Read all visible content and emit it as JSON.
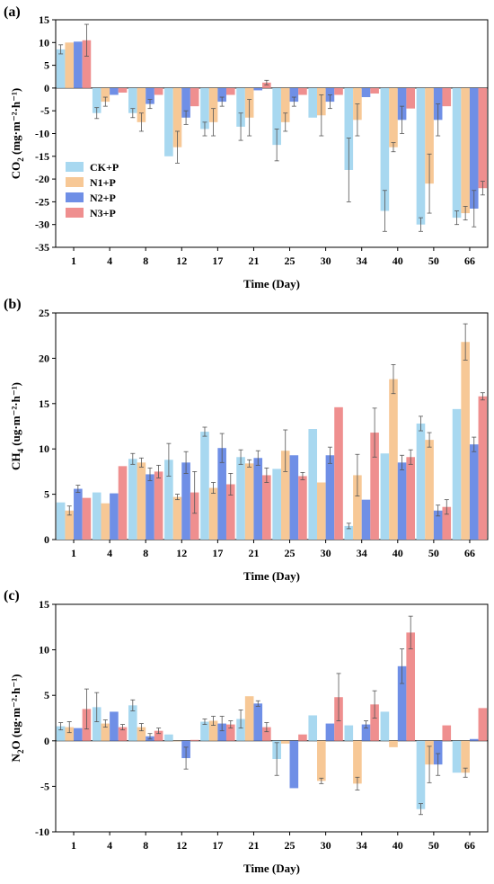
{
  "colors": {
    "CK+P": "#a8d8f0",
    "N1+P": "#f7c896",
    "N2+P": "#6f8fe6",
    "N3+P": "#ef8f8f"
  },
  "legend": [
    "CK+P",
    "N1+P",
    "N2+P",
    "N3+P"
  ],
  "chart_data": [
    {
      "type": "bar",
      "panel_label": "(a)",
      "title": "",
      "ylabel_main": "CO",
      "ylabel_sub": "2",
      "ylabel_unit": "(mg·m⁻²·h⁻¹)",
      "xlabel": "Time (Day)",
      "ylim": [
        -35,
        15
      ],
      "yticks": [
        -35,
        -30,
        -25,
        -20,
        -15,
        -10,
        -5,
        0,
        5,
        10,
        15
      ],
      "categories": [
        "1",
        "4",
        "8",
        "12",
        "17",
        "21",
        "25",
        "30",
        "34",
        "40",
        "50",
        "66"
      ],
      "legend_position": "left-middle",
      "series": [
        {
          "name": "CK+P",
          "values": [
            8.5,
            -5.5,
            -5.5,
            -15,
            -9,
            -8.5,
            -12.5,
            -6.5,
            -18,
            -27,
            -30,
            -28.5
          ],
          "errors": [
            1,
            1.2,
            1,
            0,
            1.5,
            3,
            3.5,
            0,
            7,
            4.5,
            1.5,
            1.5
          ]
        },
        {
          "name": "N1+P",
          "values": [
            10,
            -3,
            -7.5,
            -13,
            -7.5,
            -6.5,
            -7.5,
            -6,
            -7,
            -13,
            -21,
            -27.5
          ],
          "errors": [
            0,
            1,
            2,
            3.5,
            3,
            4,
            2,
            4.5,
            3.5,
            1,
            6.5,
            1.5
          ]
        },
        {
          "name": "N2+P",
          "values": [
            10.2,
            -1.5,
            -3.5,
            -6.5,
            -3,
            -0.5,
            -3,
            -3,
            -2,
            -7,
            -7,
            -26.5
          ],
          "errors": [
            0,
            0,
            1,
            1.5,
            1,
            0,
            1,
            1.5,
            0,
            3,
            3.5,
            4
          ]
        },
        {
          "name": "N3+P",
          "values": [
            10.5,
            -1,
            -1.5,
            -4,
            -1.5,
            1.2,
            -1.5,
            -1.5,
            -1.2,
            -4.5,
            -4,
            -22
          ],
          "errors": [
            3.5,
            0,
            0,
            0,
            0,
            0.5,
            0,
            0,
            0,
            0,
            0,
            1.5
          ]
        }
      ]
    },
    {
      "type": "bar",
      "panel_label": "(b)",
      "title": "",
      "ylabel_main": "CH",
      "ylabel_sub": "4",
      "ylabel_unit": "(ug·m⁻²·h⁻¹)",
      "xlabel": "Time (Day)",
      "ylim": [
        0,
        25
      ],
      "yticks": [
        0,
        5,
        10,
        15,
        20,
        25
      ],
      "categories": [
        "1",
        "4",
        "8",
        "12",
        "17",
        "21",
        "25",
        "30",
        "34",
        "40",
        "50",
        "66"
      ],
      "series": [
        {
          "name": "CK+P",
          "values": [
            4.1,
            5.2,
            8.9,
            8.8,
            11.9,
            9.1,
            7.8,
            12.2,
            1.5,
            9.5,
            12.8,
            14.4
          ],
          "errors": [
            0,
            0,
            0.6,
            1.8,
            0.5,
            0.8,
            0,
            0,
            0.3,
            0,
            0.8,
            0
          ]
        },
        {
          "name": "N1+P",
          "values": [
            3.2,
            4.0,
            8.5,
            4.7,
            5.7,
            8.4,
            9.8,
            6.3,
            7.1,
            17.7,
            11.0,
            21.8
          ],
          "errors": [
            0.5,
            0,
            0.5,
            0.3,
            0.6,
            0.4,
            2.3,
            0,
            2.3,
            1.6,
            0.8,
            2.0
          ]
        },
        {
          "name": "N2+P",
          "values": [
            5.6,
            5.1,
            7.2,
            8.5,
            10.1,
            9.0,
            9.3,
            9.3,
            4.4,
            8.5,
            3.2,
            10.5
          ],
          "errors": [
            0.4,
            0,
            0.7,
            1.2,
            1.6,
            0.8,
            0,
            0.9,
            0,
            0.8,
            0.6,
            0.8
          ]
        },
        {
          "name": "N3+P",
          "values": [
            4.6,
            8.1,
            7.5,
            5.2,
            6.1,
            7.1,
            7.0,
            14.6,
            11.8,
            9.1,
            3.6,
            15.8
          ],
          "errors": [
            0,
            0,
            0.7,
            2.3,
            1.2,
            0.8,
            0.4,
            0,
            2.7,
            0.8,
            0.8,
            0.4
          ]
        }
      ]
    },
    {
      "type": "bar",
      "panel_label": "(c)",
      "title": "",
      "ylabel_main": "N",
      "ylabel_sub": "2",
      "ylabel_after_sub": "O",
      "ylabel_unit": "(ug·m⁻²·h⁻¹)",
      "xlabel": "Time (Day)",
      "ylim": [
        -10,
        15
      ],
      "yticks": [
        -10,
        -5,
        0,
        5,
        10,
        15
      ],
      "categories": [
        "1",
        "4",
        "8",
        "12",
        "17",
        "21",
        "25",
        "30",
        "34",
        "40",
        "50",
        "66"
      ],
      "series": [
        {
          "name": "CK+P",
          "values": [
            1.6,
            3.7,
            3.9,
            0.7,
            2.1,
            2.4,
            -2.0,
            2.8,
            1.7,
            3.2,
            -7.5,
            -3.5
          ],
          "errors": [
            0.4,
            1.6,
            0.6,
            0,
            0.3,
            1.0,
            1.8,
            0,
            0,
            0,
            0.6,
            0
          ]
        },
        {
          "name": "N1+P",
          "values": [
            1.5,
            1.9,
            1.5,
            0,
            2.2,
            4.9,
            -0.3,
            -4.4,
            -4.7,
            -0.7,
            -2.6,
            -3.5
          ],
          "errors": [
            0.6,
            0.4,
            0.4,
            0,
            0.5,
            0,
            0,
            0.3,
            0.7,
            0,
            2.0,
            0.5
          ]
        },
        {
          "name": "N2+P",
          "values": [
            1.4,
            3.2,
            0.5,
            -1.9,
            1.9,
            4.1,
            -5.2,
            1.9,
            1.8,
            8.2,
            -2.6,
            0.2
          ],
          "errors": [
            0,
            0,
            0.3,
            1.2,
            0.8,
            0.3,
            0,
            0,
            0.4,
            1.9,
            1.2,
            0
          ]
        },
        {
          "name": "N3+P",
          "values": [
            3.5,
            1.5,
            1.1,
            0.1,
            1.8,
            1.5,
            0.7,
            4.8,
            4.0,
            11.9,
            1.7,
            3.6
          ],
          "errors": [
            2.2,
            0.3,
            0.3,
            0,
            0.4,
            0.5,
            0,
            2.6,
            1.5,
            1.8,
            0,
            0
          ]
        }
      ]
    }
  ]
}
